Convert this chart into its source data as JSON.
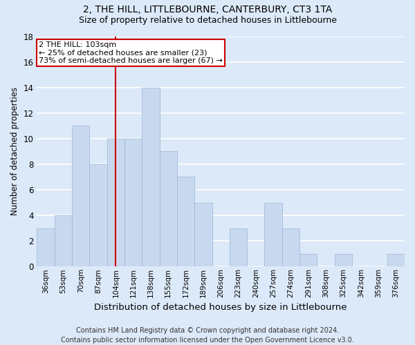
{
  "title": "2, THE HILL, LITTLEBOURNE, CANTERBURY, CT3 1TA",
  "subtitle": "Size of property relative to detached houses in Littlebourne",
  "xlabel": "Distribution of detached houses by size in Littlebourne",
  "ylabel": "Number of detached properties",
  "bar_labels": [
    "36sqm",
    "53sqm",
    "70sqm",
    "87sqm",
    "104sqm",
    "121sqm",
    "138sqm",
    "155sqm",
    "172sqm",
    "189sqm",
    "206sqm",
    "223sqm",
    "240sqm",
    "257sqm",
    "274sqm",
    "291sqm",
    "308sqm",
    "325sqm",
    "342sqm",
    "359sqm",
    "376sqm"
  ],
  "bar_values": [
    3,
    4,
    11,
    8,
    10,
    10,
    14,
    9,
    7,
    5,
    0,
    3,
    0,
    5,
    3,
    1,
    0,
    1,
    0,
    0,
    1
  ],
  "bar_color": "#c8d9ef",
  "bar_edge_color": "#9ab4d4",
  "reference_line_x": 4,
  "annotation_text": "2 THE HILL: 103sqm\n← 25% of detached houses are smaller (23)\n73% of semi-detached houses are larger (67) →",
  "annotation_box_color": "#ffffff",
  "annotation_box_edge_color": "#cc0000",
  "vline_color": "#cc0000",
  "ylim": [
    0,
    18
  ],
  "yticks": [
    0,
    2,
    4,
    6,
    8,
    10,
    12,
    14,
    16,
    18
  ],
  "footnote": "Contains HM Land Registry data © Crown copyright and database right 2024.\nContains public sector information licensed under the Open Government Licence v3.0.",
  "fig_background_color": "#dce9f8",
  "plot_background": "#dce9f8",
  "grid_color": "#ffffff",
  "title_fontsize": 10,
  "subtitle_fontsize": 9,
  "xlabel_fontsize": 9.5,
  "ylabel_fontsize": 8.5,
  "tick_fontsize": 7.5,
  "footnote_fontsize": 7,
  "annot_fontsize": 8
}
